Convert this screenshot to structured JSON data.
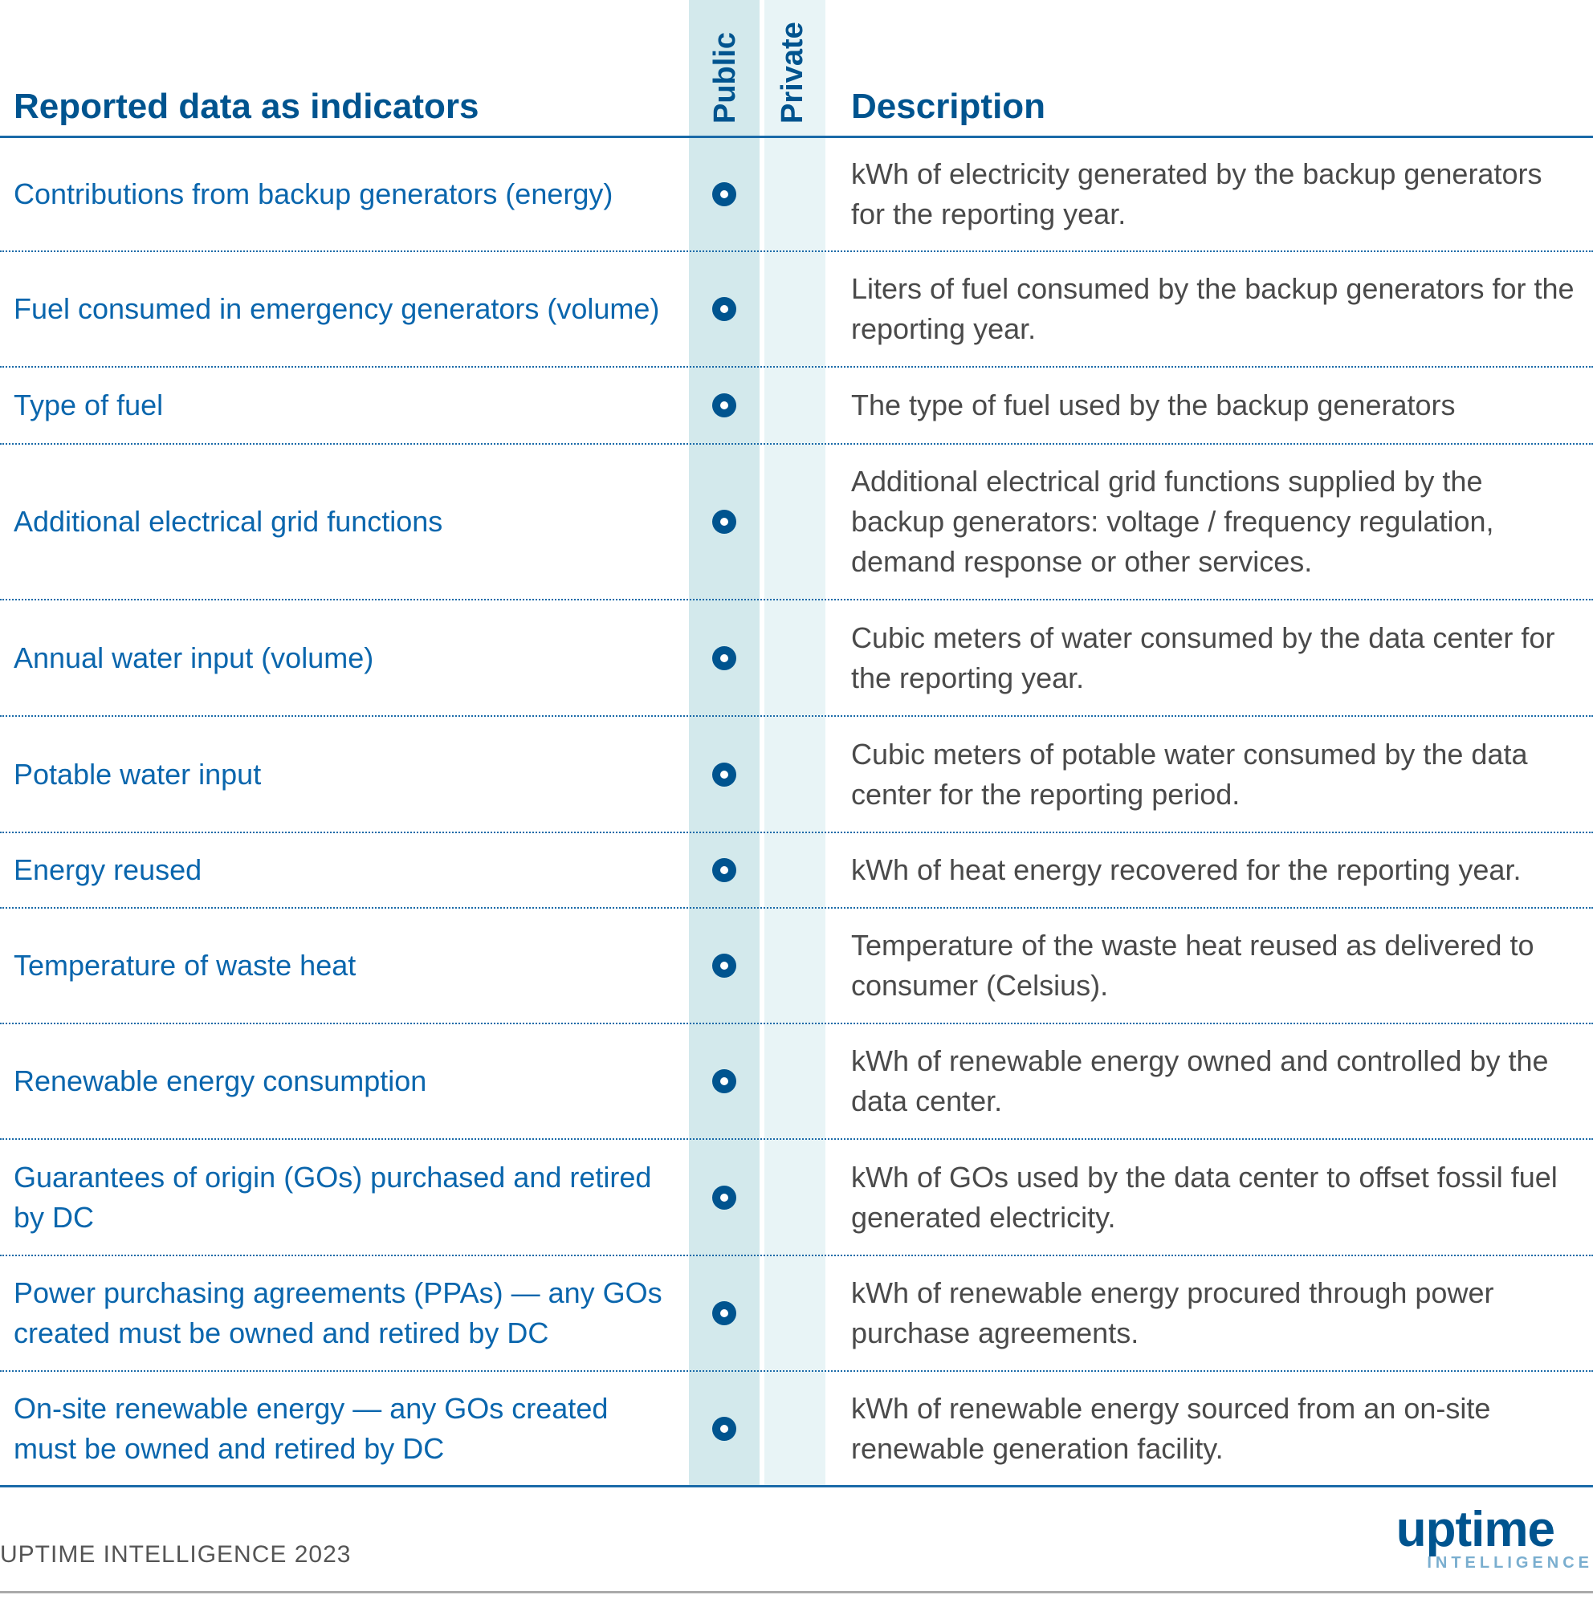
{
  "header": {
    "indicators": "Reported data as indicators",
    "public": "Public",
    "private": "Private",
    "description": "Description"
  },
  "colors": {
    "accent": "#00548f",
    "public_bg": "#d3e9ec",
    "private_bg": "#e8f4f6"
  },
  "rows": [
    {
      "indicator": "Contributions from backup generators (energy)",
      "public": true,
      "private": false,
      "description": "kWh of electricity generated by the backup generators for the reporting year."
    },
    {
      "indicator": "Fuel consumed in emergency generators (volume)",
      "public": true,
      "private": false,
      "description": "Liters of fuel consumed by the backup generators for the reporting year."
    },
    {
      "indicator": "Type of fuel",
      "public": true,
      "private": false,
      "description": "The type of fuel used by the backup generators"
    },
    {
      "indicator": "Additional electrical grid functions",
      "public": true,
      "private": false,
      "description": "Additional electrical grid functions supplied by the backup generators: voltage / frequency regulation, demand response or other services."
    },
    {
      "indicator": "Annual water input (volume)",
      "public": true,
      "private": false,
      "description": "Cubic meters of water consumed by the data center for the reporting year."
    },
    {
      "indicator": "Potable water input",
      "public": true,
      "private": false,
      "description": "Cubic meters of potable water consumed by the data center for the reporting period."
    },
    {
      "indicator": "Energy reused",
      "public": true,
      "private": false,
      "description": "kWh of heat energy recovered for the reporting year."
    },
    {
      "indicator": "Temperature of waste heat",
      "public": true,
      "private": false,
      "description": "Temperature of the waste heat reused as delivered to consumer (Celsius)."
    },
    {
      "indicator": "Renewable energy consumption",
      "public": true,
      "private": false,
      "description": "kWh of renewable energy owned and controlled by the data center."
    },
    {
      "indicator": "Guarantees of origin (GOs) purchased and retired by DC",
      "public": true,
      "private": false,
      "description": "kWh of GOs used by the data center to offset fossil fuel generated electricity."
    },
    {
      "indicator": "Power purchasing agreements (PPAs) — any GOs created must be owned and retired by DC",
      "public": true,
      "private": false,
      "description": "kWh of renewable energy procured through power purchase agreements."
    },
    {
      "indicator": "On-site renewable energy — any GOs created must be owned and retired by DC",
      "public": true,
      "private": false,
      "description": "kWh of renewable energy sourced from an on-site renewable generation facility."
    }
  ],
  "footer": {
    "source": "UPTIME INTELLIGENCE 2023",
    "logo_word": "uptime",
    "logo_sub": "INTELLIGENCE"
  }
}
